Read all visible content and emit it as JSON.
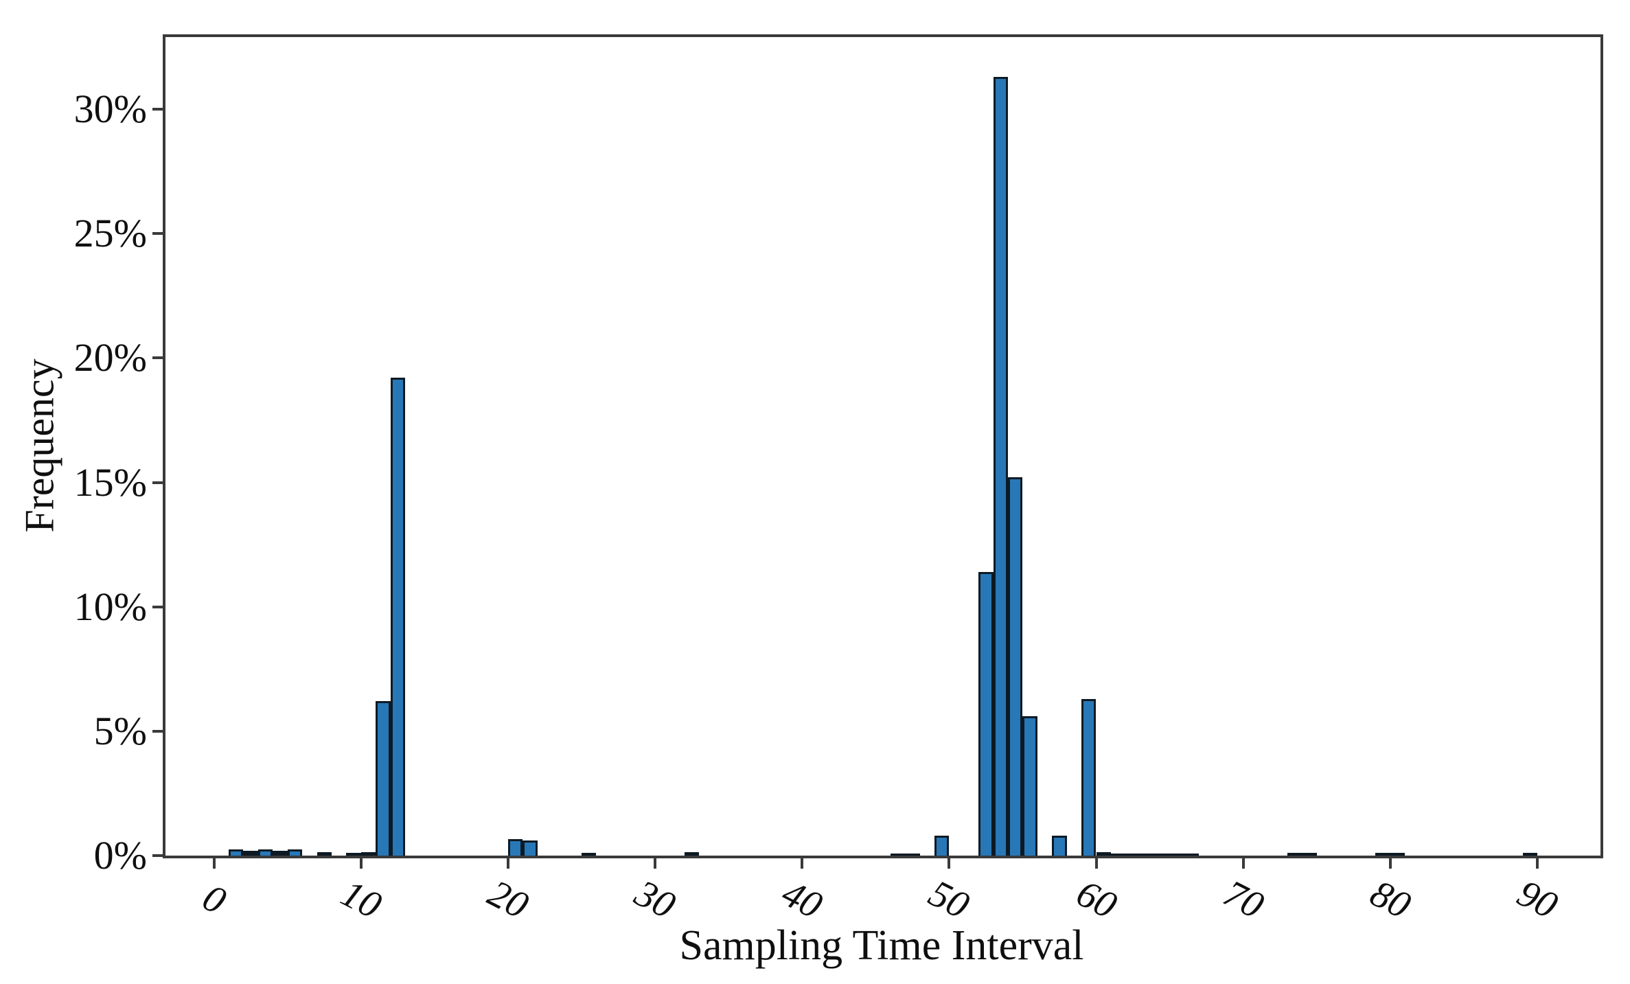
{
  "figure": {
    "background": "#ffffff",
    "bar_fill": "#2878b8",
    "bar_edge": "#0d1a24",
    "axis_color": "#3a3a3a",
    "text_color": "#0f0f0f"
  },
  "chart_data": {
    "type": "bar",
    "subtype": "histogram",
    "title": "",
    "xlabel": "Sampling Time Interval",
    "ylabel": "Frequency",
    "grid": false,
    "legend": null,
    "xlim": [
      -3.3,
      94.3
    ],
    "ylim": [
      0,
      32.9
    ],
    "bin_width": 1,
    "x_ticks": [
      0,
      10,
      20,
      30,
      40,
      50,
      60,
      70,
      80,
      90
    ],
    "y_ticks": [
      0,
      5,
      10,
      15,
      20,
      25,
      30
    ],
    "y_tick_labels": [
      "0%",
      "5%",
      "10%",
      "15%",
      "20%",
      "25%",
      "30%"
    ],
    "bins": [
      {
        "x": 1,
        "v": 0.25
      },
      {
        "x": 2,
        "v": 0.18
      },
      {
        "x": 3,
        "v": 0.25
      },
      {
        "x": 4,
        "v": 0.18
      },
      {
        "x": 5,
        "v": 0.25
      },
      {
        "x": 7,
        "v": 0.15
      },
      {
        "x": 9,
        "v": 0.1
      },
      {
        "x": 10,
        "v": 0.15
      },
      {
        "x": 11,
        "v": 6.2
      },
      {
        "x": 12,
        "v": 19.2
      },
      {
        "x": 20,
        "v": 0.65
      },
      {
        "x": 21,
        "v": 0.6
      },
      {
        "x": 25,
        "v": 0.12
      },
      {
        "x": 32,
        "v": 0.13
      },
      {
        "x": 46,
        "v": 0.08
      },
      {
        "x": 47,
        "v": 0.08
      },
      {
        "x": 49,
        "v": 0.8
      },
      {
        "x": 52,
        "v": 11.4
      },
      {
        "x": 53,
        "v": 31.3
      },
      {
        "x": 54,
        "v": 15.2
      },
      {
        "x": 55,
        "v": 5.6
      },
      {
        "x": 57,
        "v": 0.8
      },
      {
        "x": 59,
        "v": 6.3
      },
      {
        "x": 60,
        "v": 0.15
      },
      {
        "x": 61,
        "v": 0.07
      },
      {
        "x": 62,
        "v": 0.07
      },
      {
        "x": 63,
        "v": 0.07
      },
      {
        "x": 64,
        "v": 0.07
      },
      {
        "x": 65,
        "v": 0.07
      },
      {
        "x": 66,
        "v": 0.07
      },
      {
        "x": 73,
        "v": 0.1
      },
      {
        "x": 74,
        "v": 0.1
      },
      {
        "x": 79,
        "v": 0.1
      },
      {
        "x": 80,
        "v": 0.1
      },
      {
        "x": 89,
        "v": 0.1
      }
    ]
  }
}
